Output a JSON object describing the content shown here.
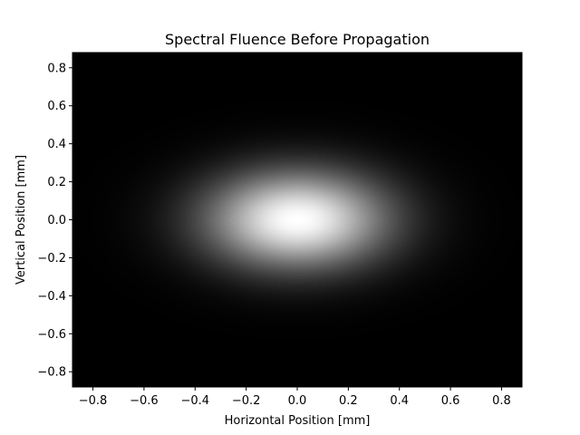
{
  "chart_data": {
    "type": "heatmap",
    "title": "Spectral Fluence Before Propagation",
    "xlabel": "Horizontal Position [mm]",
    "ylabel": "Vertical Position [mm]",
    "xlim": [
      -0.88,
      0.88
    ],
    "ylim": [
      -0.88,
      0.88
    ],
    "x_ticks": [
      -0.8,
      -0.6,
      -0.4,
      -0.2,
      0.0,
      0.2,
      0.4,
      0.6,
      0.8
    ],
    "y_ticks": [
      -0.8,
      -0.6,
      -0.4,
      -0.2,
      0.0,
      0.2,
      0.4,
      0.6,
      0.8
    ],
    "x_tick_labels": [
      "−0.8",
      "−0.6",
      "−0.4",
      "−0.2",
      "0.0",
      "0.2",
      "0.4",
      "0.6",
      "0.8"
    ],
    "y_tick_labels": [
      "−0.8",
      "−0.6",
      "−0.4",
      "−0.2",
      "0.0",
      "0.2",
      "0.4",
      "0.6",
      "0.8"
    ],
    "colormap": "gray",
    "peak_center": [
      0.0,
      0.0
    ],
    "x_width_mm": 0.25,
    "y_width_mm": 0.18,
    "grid": false,
    "colors": {
      "low": "#000000",
      "high": "#ffffff"
    }
  }
}
